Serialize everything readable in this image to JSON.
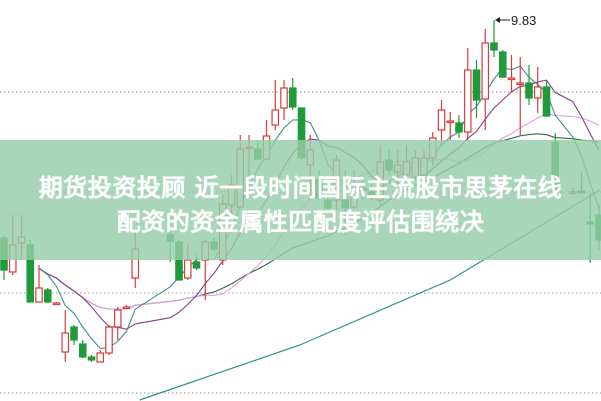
{
  "headline": {
    "line1": "期货投资投顾 近一段时间国际主流股市思茅在线",
    "line2": "配资的资金属性匹配度评估围绕决"
  },
  "chart_data": {
    "type": "candlestick",
    "title": "",
    "xlabel": "",
    "ylabel": "",
    "grid": "horizontal dotted",
    "high_marker": {
      "label": "9.83",
      "index": 56,
      "value": 9.83
    },
    "colors": {
      "up": "#d93a3a",
      "down": "#1f9a3a",
      "ma5": "#3f8e93",
      "ma10": "#8a3f86",
      "ma20": "#e79be6",
      "ma30": "#2f6a45",
      "ma_long": "#2e8f8c",
      "grid": "#a8a8a8",
      "banner": "#96cda8"
    },
    "ohlc_order": [
      "open",
      "close",
      "high",
      "low"
    ],
    "candles": [
      [
        7.65,
        7.33,
        7.68,
        7.23
      ],
      [
        7.31,
        7.58,
        7.88,
        7.28
      ],
      [
        7.6,
        7.66,
        7.88,
        7.43
      ],
      [
        7.58,
        7.01,
        7.63,
        7.01
      ],
      [
        7.01,
        7.15,
        7.38,
        7.01
      ],
      [
        7.13,
        7.01,
        7.15,
        7.0
      ],
      [
        7.0,
        7.0,
        7.01,
        6.99
      ],
      [
        6.51,
        6.7,
        6.93,
        6.41
      ],
      [
        6.76,
        6.63,
        6.78,
        6.58
      ],
      [
        6.59,
        6.46,
        6.63,
        6.45
      ],
      [
        6.46,
        6.43,
        6.48,
        6.41
      ],
      [
        6.41,
        6.5,
        6.53,
        6.41
      ],
      [
        6.5,
        6.76,
        6.78,
        6.48
      ],
      [
        6.76,
        6.93,
        6.96,
        6.63
      ],
      [
        6.96,
        6.96,
        6.98,
        6.95
      ],
      [
        7.25,
        7.54,
        7.73,
        7.15
      ],
      null,
      null,
      null,
      [
        7.68,
        7.62,
        7.88,
        7.41
      ],
      [
        7.61,
        7.23,
        7.63,
        7.23
      ],
      [
        7.25,
        7.43,
        7.6,
        7.23
      ],
      [
        7.41,
        7.35,
        7.48,
        7.33
      ],
      [
        7.43,
        7.61,
        7.63,
        7.03
      ],
      [
        7.61,
        7.54,
        7.65,
        7.51
      ],
      [
        7.43,
        7.99,
        8.08,
        7.38
      ],
      [
        7.98,
        8.18,
        8.28,
        7.88
      ],
      [
        7.96,
        8.54,
        8.68,
        7.96
      ],
      [
        8.56,
        8.56,
        8.68,
        8.13
      ],
      [
        8.54,
        8.44,
        8.63,
        8.43
      ],
      [
        8.44,
        8.67,
        8.83,
        8.43
      ],
      [
        8.78,
        8.93,
        9.23,
        8.73
      ],
      [
        8.95,
        9.15,
        9.23,
        8.83
      ],
      [
        9.15,
        8.96,
        9.25,
        8.93
      ],
      [
        8.95,
        8.45,
        8.95,
        8.43
      ],
      [
        8.38,
        8.53,
        8.68,
        8.03
      ],
      [
        8.23,
        8.05,
        8.33,
        8.03
      ],
      [
        8.03,
        7.95,
        8.08,
        7.93
      ],
      [
        8.03,
        8.43,
        8.48,
        7.93
      ],
      [
        8.03,
        7.95,
        8.33,
        7.68
      ],
      [
        7.96,
        8.15,
        8.33,
        7.93
      ],
      [
        8.13,
        8.15,
        8.23,
        8.03
      ],
      [
        8.11,
        8.05,
        8.18,
        8.03
      ],
      [
        8.03,
        8.41,
        8.58,
        7.98
      ],
      [
        8.43,
        8.33,
        8.53,
        8.28
      ],
      [
        8.31,
        8.38,
        8.53,
        8.18
      ],
      [
        8.28,
        8.41,
        8.58,
        8.23
      ],
      [
        8.26,
        8.45,
        8.53,
        8.23
      ],
      [
        8.28,
        8.45,
        8.53,
        8.25
      ],
      [
        8.45,
        8.65,
        8.71,
        8.38
      ],
      [
        8.73,
        8.93,
        9.03,
        8.58
      ],
      [
        8.82,
        8.82,
        8.91,
        8.63
      ],
      [
        8.8,
        8.71,
        8.88,
        8.65
      ],
      [
        8.71,
        9.33,
        9.55,
        8.63
      ],
      [
        9.33,
        9.03,
        9.43,
        8.85
      ],
      [
        9.04,
        9.6,
        9.74,
        8.73
      ],
      [
        9.6,
        9.53,
        9.83,
        9.46
      ],
      [
        9.51,
        9.26,
        9.53,
        9.25
      ],
      [
        9.25,
        9.25,
        9.48,
        9.11
      ],
      [
        9.2,
        9.2,
        9.46,
        8.68
      ],
      [
        9.2,
        9.05,
        9.38,
        8.98
      ],
      [
        9.05,
        9.16,
        9.36,
        8.9
      ],
      [
        9.16,
        8.87,
        9.23,
        8.86
      ],
      [
        8.61,
        8.11,
        8.7,
        8.1
      ],
      null,
      [
        8.11,
        8.11,
        8.15,
        8.08
      ],
      [
        8.12,
        8.1,
        8.31,
        8.09
      ],
      [
        7.81,
        7.79,
        8.1,
        7.4
      ],
      [
        7.88,
        7.63,
        7.98,
        7.53
      ]
    ],
    "ma_long": [
      [
        15.5,
        6.03
      ],
      [
        33.8,
        6.58
      ],
      [
        51,
        7.23
      ],
      [
        68.1,
        8.13
      ]
    ],
    "ylim": [
      5.95,
      10.05
    ]
  }
}
